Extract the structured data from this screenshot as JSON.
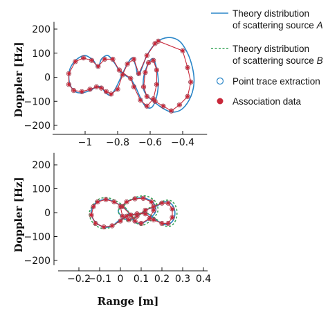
{
  "chart_data": [
    {
      "type": "line",
      "panel": "top",
      "ylabel": "Doppler [Hz]",
      "xlabel": "",
      "xlim": [
        -1.2,
        -0.25
      ],
      "ylim": [
        -220,
        230
      ],
      "x_ticks": [
        -1,
        -0.8,
        -0.6,
        -0.4
      ],
      "x_tick_labels": [
        "−1",
        "−0.8",
        "−0.6",
        "−0.4"
      ],
      "y_ticks": [
        200,
        100,
        0,
        -100,
        -200
      ],
      "y_tick_labels": [
        "200",
        "100",
        "0",
        "−100",
        "−200"
      ],
      "series": [
        {
          "name": "Theory distribution of scattering source A",
          "style": "solid",
          "color": "#2a86c8",
          "x": [
            -0.72,
            -0.78,
            -0.82,
            -0.86,
            -0.9,
            -0.92,
            -0.95,
            -1.0,
            -1.05,
            -1.09,
            -1.1,
            -1.09,
            -1.06,
            -1.02,
            -0.97,
            -0.93,
            -0.9,
            -0.88,
            -0.85,
            -0.83,
            -0.8,
            -0.77,
            -0.74,
            -0.71,
            -0.69,
            -0.67,
            -0.62,
            -0.56,
            -0.49,
            -0.42,
            -0.37,
            -0.34,
            -0.33,
            -0.35,
            -0.4,
            -0.46,
            -0.52,
            -0.58,
            -0.62,
            -0.64,
            -0.64,
            -0.62,
            -0.6,
            -0.58,
            -0.56,
            -0.55,
            -0.56,
            -0.59,
            -0.63,
            -0.66,
            -0.69,
            -0.72
          ],
          "y": [
            -5,
            20,
            60,
            90,
            75,
            40,
            70,
            90,
            75,
            40,
            0,
            -35,
            -60,
            -65,
            -55,
            -40,
            -40,
            -60,
            -75,
            -65,
            -30,
            15,
            55,
            80,
            50,
            10,
            90,
            145,
            165,
            150,
            100,
            40,
            -20,
            -80,
            -130,
            -145,
            -130,
            -100,
            -75,
            -50,
            0,
            45,
            70,
            75,
            35,
            -20,
            -80,
            -125,
            -120,
            -85,
            -40,
            -5
          ]
        },
        {
          "name": "Association data",
          "style": "marker-line",
          "color": "#c8283a",
          "x": [
            -0.72,
            -0.79,
            -0.83,
            -0.88,
            -0.92,
            -0.96,
            -1.01,
            -1.06,
            -1.1,
            -1.1,
            -1.07,
            -1.02,
            -0.97,
            -0.93,
            -0.9,
            -0.87,
            -0.84,
            -0.8,
            -0.77,
            -0.74,
            -0.7,
            -0.67,
            -0.62,
            -0.57,
            -0.55,
            -0.4,
            -0.37,
            -0.35,
            -0.37,
            -0.42,
            -0.47,
            -0.52,
            -0.57,
            -0.62,
            -0.64,
            -0.63,
            -0.61,
            -0.58,
            -0.56,
            -0.56,
            -0.58,
            -0.62,
            -0.66,
            -0.7
          ],
          "y": [
            -5,
            30,
            75,
            75,
            45,
            70,
            80,
            65,
            15,
            -30,
            -55,
            -60,
            -50,
            -40,
            -45,
            -60,
            -70,
            -50,
            10,
            55,
            75,
            15,
            90,
            140,
            150,
            110,
            40,
            -20,
            -80,
            -115,
            -140,
            -120,
            -100,
            -80,
            -40,
            20,
            60,
            70,
            30,
            -30,
            -90,
            -120,
            -95,
            -40
          ]
        },
        {
          "name": "Point trace extraction",
          "style": "open-circle",
          "color": "#9b3a4a",
          "x": [
            -0.72,
            -0.79,
            -0.83,
            -0.88,
            -0.92,
            -0.96,
            -1.01,
            -1.06,
            -1.1,
            -1.1,
            -1.07,
            -1.02,
            -0.97,
            -0.93,
            -0.9,
            -0.87,
            -0.84,
            -0.8,
            -0.77,
            -0.74,
            -0.7,
            -0.67,
            -0.62,
            -0.57,
            -0.55,
            -0.4,
            -0.37,
            -0.35,
            -0.37,
            -0.42,
            -0.47,
            -0.52,
            -0.57,
            -0.62,
            -0.64,
            -0.63,
            -0.61,
            -0.58,
            -0.56,
            -0.56,
            -0.58,
            -0.62,
            -0.66,
            -0.7
          ],
          "y": [
            -5,
            30,
            75,
            75,
            45,
            70,
            80,
            65,
            15,
            -30,
            -55,
            -60,
            -50,
            -40,
            -45,
            -60,
            -70,
            -50,
            10,
            55,
            75,
            15,
            90,
            140,
            150,
            110,
            40,
            -20,
            -80,
            -115,
            -140,
            -120,
            -100,
            -80,
            -40,
            20,
            60,
            70,
            30,
            -30,
            -90,
            -120,
            -95,
            -40
          ]
        }
      ]
    },
    {
      "type": "line",
      "panel": "bottom",
      "ylabel": "Doppler [Hz]",
      "xlabel": "Range [m]",
      "xlim": [
        -0.3,
        0.42
      ],
      "ylim": [
        -220,
        250
      ],
      "x_ticks": [
        -0.2,
        -0.1,
        0,
        0.1,
        0.2,
        0.3,
        0.4
      ],
      "x_tick_labels": [
        "−0.2",
        "−0.1",
        "0",
        "0.1",
        "0.2",
        "0.3",
        "0.4"
      ],
      "y_ticks": [
        200,
        100,
        0,
        -100,
        -200
      ],
      "y_tick_labels": [
        "200",
        "100",
        "0",
        "−100",
        "−200"
      ],
      "series": [
        {
          "name": "Theory distribution of scattering source A",
          "style": "solid",
          "color": "#2a86c8",
          "x": [
            0.05,
            0.02,
            -0.02,
            -0.06,
            -0.1,
            -0.13,
            -0.14,
            -0.12,
            -0.08,
            -0.04,
            -0.01,
            0.02,
            0.04,
            0.05,
            0.07,
            0.1,
            0.14,
            0.17,
            0.16,
            0.12,
            0.08,
            0.04,
            0.01,
            -0.01,
            0.0,
            0.03,
            0.06,
            0.09,
            0.12,
            0.15,
            0.18,
            0.21,
            0.24,
            0.26,
            0.26,
            0.24,
            0.21,
            0.18,
            0.15,
            0.12,
            0.08,
            0.05
          ],
          "y": [
            -10,
            20,
            40,
            55,
            50,
            30,
            -5,
            -40,
            -60,
            -55,
            -35,
            -20,
            -5,
            -15,
            -40,
            -45,
            -25,
            5,
            40,
            60,
            60,
            50,
            30,
            10,
            -10,
            -30,
            -25,
            -10,
            10,
            20,
            30,
            45,
            40,
            15,
            -20,
            -45,
            -50,
            -35,
            -15,
            0,
            -5,
            -10
          ]
        },
        {
          "name": "Theory distribution of scattering source B",
          "style": "dashed",
          "color": "#3aa55a",
          "x": [
            0.05,
            0.02,
            -0.02,
            -0.06,
            -0.1,
            -0.13,
            -0.15,
            -0.13,
            -0.09,
            -0.05,
            -0.01,
            0.02,
            0.04,
            0.06,
            0.08,
            0.11,
            0.15,
            0.18,
            0.17,
            0.13,
            0.09,
            0.05,
            0.02,
            -0.01,
            0.0,
            0.03,
            0.06,
            0.09,
            0.12,
            0.15,
            0.18,
            0.22,
            0.25,
            0.27,
            0.27,
            0.25,
            0.22,
            0.19,
            0.16,
            0.12,
            0.08,
            0.05
          ],
          "y": [
            -12,
            25,
            48,
            62,
            58,
            35,
            -5,
            -45,
            -66,
            -62,
            -40,
            -22,
            -5,
            -18,
            -45,
            -52,
            -30,
            5,
            45,
            68,
            68,
            55,
            32,
            10,
            -12,
            -34,
            -28,
            -12,
            12,
            24,
            36,
            52,
            46,
            18,
            -22,
            -52,
            -58,
            -40,
            -18,
            0,
            -6,
            -12
          ]
        },
        {
          "name": "Association data",
          "style": "marker-line",
          "color": "#c8283a",
          "x": [
            0.05,
            0.01,
            -0.03,
            -0.07,
            -0.11,
            -0.13,
            -0.14,
            -0.12,
            -0.08,
            -0.04,
            0.0,
            0.03,
            0.05,
            0.07,
            0.1,
            0.14,
            0.16,
            0.15,
            0.11,
            0.07,
            0.03,
            0.0,
            0.01,
            0.04,
            0.08,
            0.12,
            0.16,
            0.2,
            0.23,
            0.25,
            0.25,
            0.23,
            0.2,
            0.16,
            0.12,
            0.08
          ],
          "y": [
            -10,
            25,
            45,
            55,
            45,
            25,
            -10,
            -45,
            -60,
            -55,
            -35,
            -15,
            -10,
            -35,
            -45,
            -25,
            10,
            45,
            60,
            58,
            45,
            25,
            -15,
            -30,
            -15,
            10,
            25,
            40,
            40,
            15,
            -20,
            -45,
            -45,
            -30,
            -5,
            -5
          ]
        },
        {
          "name": "Point trace extraction",
          "style": "open-circle",
          "color": "#9b3a4a",
          "x": [
            0.05,
            0.01,
            -0.03,
            -0.07,
            -0.11,
            -0.13,
            -0.14,
            -0.12,
            -0.08,
            -0.04,
            0.0,
            0.03,
            0.05,
            0.07,
            0.1,
            0.14,
            0.16,
            0.15,
            0.11,
            0.07,
            0.03,
            0.0,
            0.01,
            0.04,
            0.08,
            0.12,
            0.16,
            0.2,
            0.23,
            0.25,
            0.25,
            0.23,
            0.2,
            0.16,
            0.12,
            0.08
          ],
          "y": [
            -10,
            25,
            45,
            55,
            45,
            25,
            -10,
            -45,
            -60,
            -55,
            -35,
            -15,
            -10,
            -35,
            -45,
            -25,
            10,
            45,
            60,
            58,
            45,
            25,
            -15,
            -30,
            -15,
            10,
            25,
            40,
            40,
            15,
            -20,
            -45,
            -45,
            -30,
            -5,
            -5
          ]
        }
      ]
    }
  ],
  "legend": {
    "placement": "right",
    "entries": [
      {
        "line1": "Theory distribution",
        "line2": "of scattering source ",
        "letter": "A",
        "style": "solid",
        "color": "#2a86c8"
      },
      {
        "line1": "Theory distribution",
        "line2": "of scattering source ",
        "letter": "B",
        "style": "dashed",
        "color": "#3aa55a"
      },
      {
        "line1": "Point trace extraction",
        "line2": "",
        "letter": "",
        "style": "open-circle",
        "color": "#2a86c8"
      },
      {
        "line1": "Association data",
        "line2": "",
        "letter": "",
        "style": "filled-circle",
        "color": "#c8283a"
      }
    ]
  }
}
